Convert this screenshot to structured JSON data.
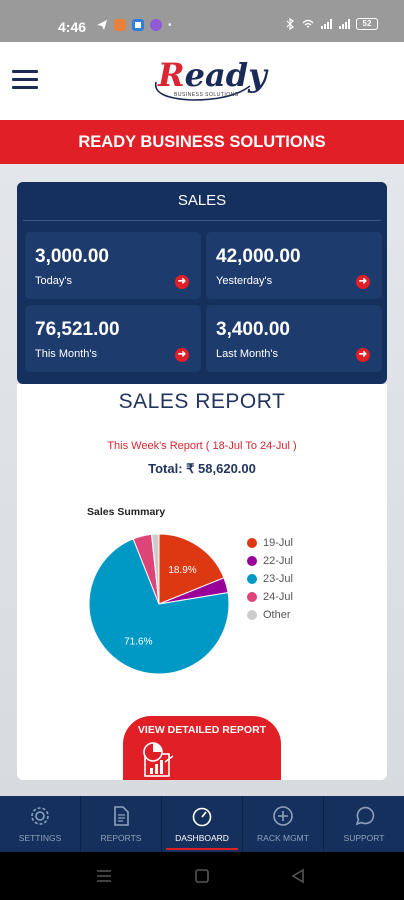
{
  "status_bar": {
    "time": "4:46",
    "battery": "52"
  },
  "header": {
    "logo_text": "eady",
    "logo_first_letter": "R",
    "logo_subtitle": "BUSINESS SOLUTIONS"
  },
  "banner": {
    "title": "READY BUSINESS SOLUTIONS"
  },
  "sales": {
    "title": "SALES",
    "cards": [
      {
        "value": "3,000.00",
        "label": "Today's"
      },
      {
        "value": "42,000.00",
        "label": "Yesterday's"
      },
      {
        "value": "76,521.00",
        "label": "This Month's"
      },
      {
        "value": "3,400.00",
        "label": "Last Month's"
      }
    ]
  },
  "report": {
    "title": "SALES REPORT",
    "week_text": "This Week's Report ( 18-Jul To 24-Jul )",
    "total_text": "Total: ₹ 58,620.00",
    "detail_button_label": "VIEW DETAILED REPORT"
  },
  "chart_data": {
    "type": "pie",
    "title": "Sales Summary",
    "labels": [
      "19-Jul",
      "22-Jul",
      "23-Jul",
      "24-Jul",
      "Other"
    ],
    "values": [
      18.9,
      3.5,
      71.6,
      4.3,
      1.7
    ],
    "slice_labels": [
      "18.9%",
      "",
      "71.6%",
      "",
      ""
    ],
    "colors": [
      "#dc3912",
      "#990099",
      "#0099c6",
      "#dd4477",
      "#cccccc"
    ],
    "legend_position": "right"
  },
  "bottom_nav": [
    {
      "label": "SETTINGS",
      "icon": "gear-icon",
      "active": false
    },
    {
      "label": "REPORTS",
      "icon": "document-icon",
      "active": false
    },
    {
      "label": "DASHBOARD",
      "icon": "gauge-icon",
      "active": true
    },
    {
      "label": "RACK MGMT",
      "icon": "plus-circle-icon",
      "active": false
    },
    {
      "label": "SUPPORT",
      "icon": "whatsapp-icon",
      "active": false
    }
  ],
  "colors": {
    "brand_red": "#e01f26",
    "navy": "#15305c"
  }
}
